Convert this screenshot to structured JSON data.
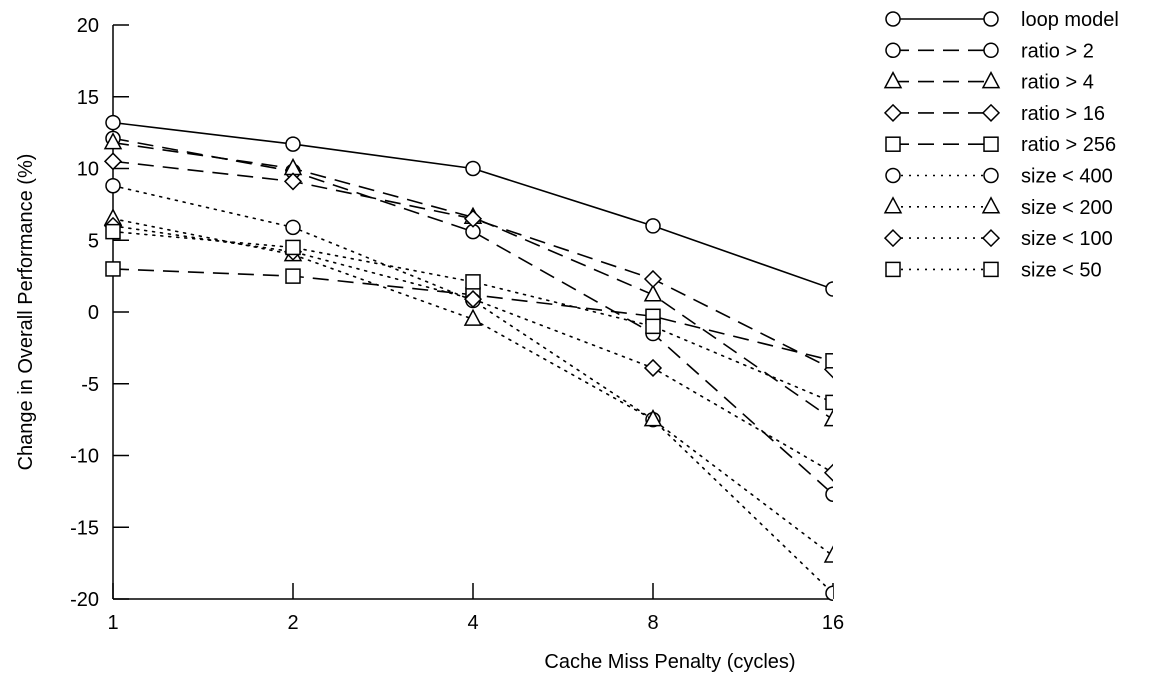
{
  "chart_data": {
    "type": "line",
    "xlabel": "Cache Miss Penalty (cycles)",
    "ylabel": "Change in Overall Performance (%)",
    "x_scale": "log2",
    "x": [
      1,
      2,
      4,
      8,
      16
    ],
    "x_tick_labels": [
      "1",
      "2",
      "4",
      "8",
      "16"
    ],
    "ylim": [
      -20,
      20
    ],
    "y_ticks": [
      -20,
      -15,
      -10,
      -5,
      0,
      5,
      10,
      15,
      20
    ],
    "y_tick_labels": [
      "-20",
      "-15",
      "-10",
      "-5",
      "0",
      "5",
      "10",
      "15",
      "20"
    ],
    "grid": false,
    "legend_position": "top-right outside",
    "series": [
      {
        "name": "loop model",
        "line": "solid",
        "marker": "circle",
        "values": [
          13.2,
          11.7,
          10.0,
          6.0,
          1.6
        ]
      },
      {
        "name": "ratio > 2",
        "line": "dashed",
        "marker": "circle",
        "values": [
          12.1,
          9.8,
          5.6,
          -1.5,
          -12.7
        ]
      },
      {
        "name": "ratio > 4",
        "line": "dashed",
        "marker": "triangle",
        "values": [
          11.8,
          10.0,
          6.6,
          1.2,
          -7.5
        ]
      },
      {
        "name": "ratio > 16",
        "line": "dashed",
        "marker": "diamond",
        "values": [
          10.5,
          9.1,
          6.5,
          2.3,
          -4.0
        ]
      },
      {
        "name": "ratio > 256",
        "line": "dashed",
        "marker": "square",
        "values": [
          3.0,
          2.5,
          1.2,
          -0.3,
          -3.4
        ]
      },
      {
        "name": "size < 400",
        "line": "dotted",
        "marker": "circle",
        "values": [
          8.8,
          5.9,
          0.8,
          -7.5,
          -19.6
        ]
      },
      {
        "name": "size < 200",
        "line": "dotted",
        "marker": "triangle",
        "values": [
          6.5,
          4.0,
          -0.5,
          -7.5,
          -17.0
        ]
      },
      {
        "name": "size < 100",
        "line": "dotted",
        "marker": "diamond",
        "values": [
          6.0,
          4.2,
          0.9,
          -3.9,
          -11.2
        ]
      },
      {
        "name": "size < 50",
        "line": "dotted",
        "marker": "square",
        "values": [
          5.6,
          4.5,
          2.1,
          -1.0,
          -6.3
        ]
      }
    ]
  }
}
